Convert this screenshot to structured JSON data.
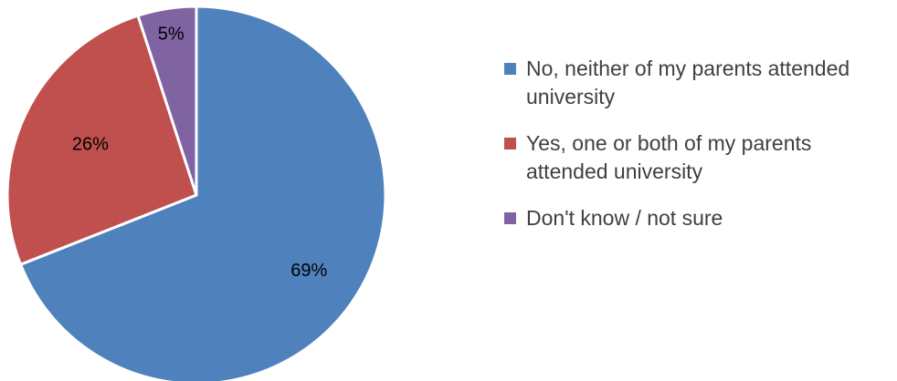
{
  "chart_data": {
    "type": "pie",
    "title": "",
    "slices": [
      {
        "label": "No, neither of my parents attended university",
        "value": 69,
        "display": "69%",
        "color": "#4F81BD"
      },
      {
        "label": "Yes, one or both of my parents attended university",
        "value": 26,
        "display": "26%",
        "color": "#C0504D"
      },
      {
        "label": "Don't know / not sure",
        "value": 5,
        "display": "5%",
        "color": "#8064A2"
      }
    ],
    "legend_position": "right"
  }
}
